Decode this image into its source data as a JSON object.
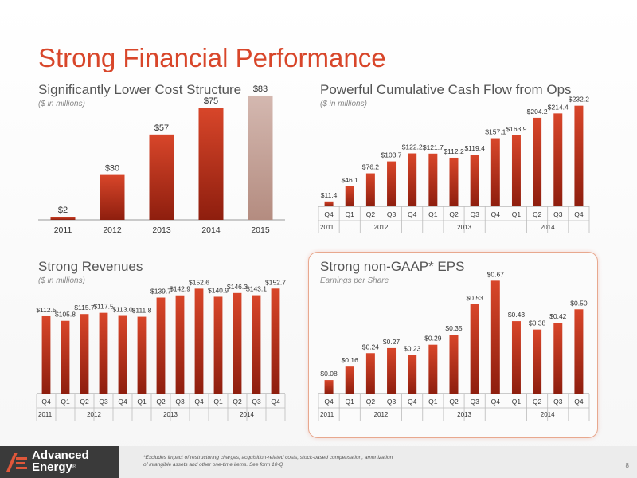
{
  "slide": {
    "title": "Strong Financial Performance",
    "page_number": "8",
    "footnote": "*Excludes impact of restructuring charges, acquisition-related costs, stock-based compensation, amortization of intangible assets and other one-time items. See form 10-Q",
    "logo": {
      "line1": "Advanced",
      "line2": "Energy",
      "mark": "®"
    }
  },
  "colors": {
    "title": "#d8462a",
    "bar_top": "#d8462a",
    "bar_bottom": "#8e1e0e",
    "bar_fade_top": "#d4b8b0",
    "bar_fade_bottom": "#b48c80",
    "box_border": "#e8a88e"
  },
  "panels": {
    "cost": {
      "title": "Significantly Lower Cost Structure",
      "subtitle": "($ in millions)"
    },
    "cash": {
      "title": "Powerful Cumulative Cash Flow from Ops",
      "subtitle": "($ in millions)"
    },
    "revenue": {
      "title": "Strong Revenues",
      "subtitle": "($ in millions)"
    },
    "eps": {
      "title": "Strong non-GAAP* EPS",
      "subtitle": "Earnings per Share"
    }
  },
  "chart_data": [
    {
      "id": "cost",
      "type": "bar",
      "title": "Significantly Lower Cost Structure",
      "subtitle": "($ in millions)",
      "categories": [
        "2011",
        "2012",
        "2013",
        "2014",
        "2015"
      ],
      "values": [
        2,
        30,
        57,
        75,
        83
      ],
      "labels": [
        "$2",
        "$30",
        "$57",
        "$75",
        "$83"
      ],
      "ylim": [
        0,
        100
      ],
      "last_bar_faded": true,
      "grid": false
    },
    {
      "id": "cash",
      "type": "bar",
      "title": "Powerful Cumulative Cash Flow from Ops",
      "subtitle": "($ in millions)",
      "categories": [
        "Q4",
        "Q1",
        "Q2",
        "Q3",
        "Q4",
        "Q1",
        "Q2",
        "Q3",
        "Q4",
        "Q1",
        "Q2",
        "Q3",
        "Q4"
      ],
      "years": [
        {
          "label": "2011",
          "count": 1
        },
        {
          "label": "2012",
          "count": 4
        },
        {
          "label": "2013",
          "count": 4
        },
        {
          "label": "2014",
          "count": 4
        }
      ],
      "values": [
        11.4,
        46.1,
        76.2,
        103.7,
        122.2,
        121.7,
        112.2,
        119.4,
        157.1,
        163.9,
        204.2,
        214.4,
        232.2
      ],
      "labels": [
        "$11.4",
        "$46.1",
        "$76.2",
        "$103.7",
        "$122.2",
        "$121.7",
        "$112.2",
        "$119.4",
        "$157.1",
        "$163.9",
        "$204.2",
        "$214.4",
        "$232.2"
      ],
      "ylim": [
        0,
        250
      ],
      "grid": false
    },
    {
      "id": "revenue",
      "type": "bar",
      "title": "Strong Revenues",
      "subtitle": "($ in millions)",
      "categories": [
        "Q4",
        "Q1",
        "Q2",
        "Q3",
        "Q4",
        "Q1",
        "Q2",
        "Q3",
        "Q4",
        "Q1",
        "Q2",
        "Q3",
        "Q4"
      ],
      "years": [
        {
          "label": "2011",
          "count": 1
        },
        {
          "label": "2012",
          "count": 4
        },
        {
          "label": "2013",
          "count": 4
        },
        {
          "label": "2014",
          "count": 4
        }
      ],
      "values": [
        112.5,
        105.8,
        115.7,
        117.5,
        113.0,
        111.8,
        139.7,
        142.9,
        152.6,
        140.9,
        146.3,
        143.1,
        152.7
      ],
      "labels": [
        "$112.5",
        "$105.8",
        "$115.7",
        "$117.5",
        "$113.0",
        "$111.8",
        "$139.7",
        "$142.9",
        "$152.6",
        "$140.9",
        "$146.3",
        "$143.1",
        "$152.7"
      ],
      "ylim": [
        0,
        160
      ],
      "grid": false
    },
    {
      "id": "eps",
      "type": "bar",
      "title": "Strong non-GAAP* EPS",
      "subtitle": "Earnings per Share",
      "categories": [
        "Q4",
        "Q1",
        "Q2",
        "Q3",
        "Q4",
        "Q1",
        "Q2",
        "Q3",
        "Q4",
        "Q1",
        "Q2",
        "Q3",
        "Q4"
      ],
      "years": [
        {
          "label": "2011",
          "count": 1
        },
        {
          "label": "2012",
          "count": 4
        },
        {
          "label": "2013",
          "count": 4
        },
        {
          "label": "2014",
          "count": 4
        }
      ],
      "values": [
        0.08,
        0.16,
        0.24,
        0.27,
        0.23,
        0.29,
        0.35,
        0.53,
        0.67,
        0.43,
        0.38,
        0.42,
        0.5
      ],
      "labels": [
        "$0.08",
        "$0.16",
        "$0.24",
        "$0.27",
        "$0.23",
        "$0.29",
        "$0.35",
        "$0.53",
        "$0.67",
        "$0.43",
        "$0.38",
        "$0.42",
        "$0.50"
      ],
      "ylim": [
        0,
        0.7
      ],
      "grid": false
    }
  ]
}
